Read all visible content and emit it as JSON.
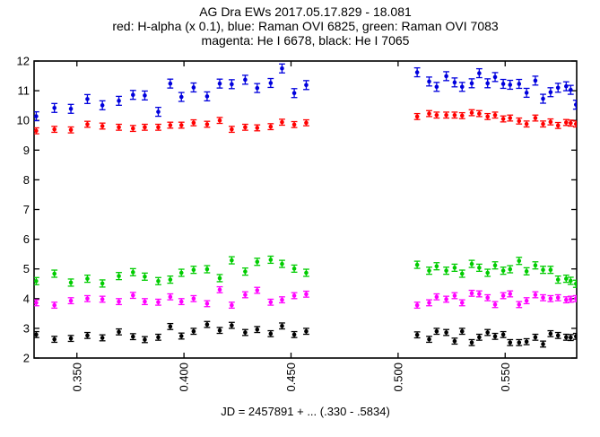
{
  "window": {
    "background": "#ffffff"
  },
  "chart_data": {
    "type": "scatter",
    "marker": "filled-circle-with-errorbars",
    "title": "AG Dra EWs 2017.05.17.829 - 18.081",
    "legend_line_1": "red: H-alpha (x 0.1), blue: Raman OVI 6825, green: Raman OVI 7083",
    "legend_line_2": "magenta: He I 6678, black: He I 7065",
    "xlabel": "JD = 2457891 + ... (.330 - .5834)",
    "ylabel": "",
    "xlim": [
      0.33,
      0.5834
    ],
    "ylim": [
      2,
      12
    ],
    "grid": false,
    "tick_style": "inside-mirrored",
    "xtick_values": [
      0.35,
      0.4,
      0.45,
      0.5,
      0.55
    ],
    "xtick_labels": [
      "0.350",
      "0.400",
      "0.450",
      "0.500",
      "0.550"
    ],
    "xtick_label_rotation": -90,
    "ytick_values": [
      2,
      3,
      4,
      5,
      6,
      7,
      8,
      9,
      10,
      11,
      12
    ],
    "ytick_labels": [
      "2",
      "3",
      "4",
      "5",
      "6",
      "7",
      "8",
      "9",
      "10",
      "11",
      "12"
    ],
    "x": [
      0.331,
      0.3395,
      0.3472,
      0.3549,
      0.3619,
      0.3696,
      0.3762,
      0.3817,
      0.388,
      0.3936,
      0.3988,
      0.4045,
      0.4108,
      0.4167,
      0.4223,
      0.4286,
      0.4342,
      0.4405,
      0.4458,
      0.4515,
      0.4571,
      0.5089,
      0.5145,
      0.518,
      0.5225,
      0.5264,
      0.5299,
      0.5344,
      0.5379,
      0.5418,
      0.5453,
      0.5491,
      0.5523,
      0.5565,
      0.56,
      0.5641,
      0.5677,
      0.5712,
      0.5747,
      0.5785,
      0.5806,
      0.5831
    ],
    "series": [
      {
        "name": "H-alpha (x 0.1)",
        "color": "#ff0000",
        "err": 0.1,
        "values": [
          9.65,
          9.7,
          9.68,
          9.87,
          9.81,
          9.77,
          9.73,
          9.77,
          9.77,
          9.84,
          9.84,
          9.92,
          9.87,
          10.0,
          9.7,
          9.77,
          9.75,
          9.79,
          9.94,
          9.86,
          9.92,
          10.13,
          10.23,
          10.18,
          10.18,
          10.18,
          10.16,
          10.26,
          10.23,
          10.13,
          10.18,
          10.05,
          10.08,
          9.98,
          9.88,
          10.08,
          9.88,
          9.95,
          9.83,
          9.93,
          9.91,
          9.88
        ]
      },
      {
        "name": "Raman OVI 6825",
        "color": "#0000dd",
        "err": 0.15,
        "values": [
          10.14,
          10.42,
          10.39,
          10.72,
          10.51,
          10.66,
          10.86,
          10.84,
          10.29,
          11.24,
          10.79,
          11.11,
          10.81,
          11.24,
          11.22,
          11.37,
          11.09,
          11.26,
          11.75,
          10.92,
          11.19,
          11.62,
          11.31,
          11.13,
          11.49,
          11.28,
          11.13,
          11.25,
          11.59,
          11.25,
          11.46,
          11.23,
          11.2,
          11.23,
          10.93,
          11.34,
          10.73,
          10.95,
          11.1,
          11.15,
          11.03,
          10.53
        ]
      },
      {
        "name": "Raman OVI 7083",
        "color": "#00cc00",
        "err": 0.12,
        "values": [
          4.59,
          4.84,
          4.54,
          4.67,
          4.51,
          4.76,
          4.89,
          4.74,
          4.59,
          4.64,
          4.87,
          4.97,
          4.99,
          4.69,
          5.29,
          4.91,
          5.24,
          5.31,
          5.17,
          5.01,
          4.87,
          5.14,
          4.94,
          5.09,
          4.94,
          5.04,
          4.84,
          5.17,
          5.04,
          4.87,
          5.12,
          4.94,
          4.99,
          5.27,
          4.92,
          5.12,
          4.97,
          4.97,
          4.64,
          4.67,
          4.6,
          4.5
        ]
      },
      {
        "name": "He I 6678",
        "color": "#ff00ff",
        "err": 0.1,
        "values": [
          3.86,
          3.78,
          3.93,
          4.0,
          3.98,
          3.9,
          4.11,
          3.9,
          3.88,
          4.06,
          3.9,
          4.0,
          3.83,
          4.3,
          3.78,
          4.13,
          4.28,
          3.88,
          3.96,
          4.1,
          4.15,
          3.78,
          3.86,
          4.06,
          3.98,
          4.1,
          3.86,
          4.18,
          4.16,
          4.03,
          3.8,
          4.1,
          4.16,
          3.8,
          3.93,
          4.13,
          4.03,
          4.0,
          4.03,
          3.96,
          3.98,
          4.0
        ]
      },
      {
        "name": "He I 7065",
        "color": "#000000",
        "err": 0.1,
        "values": [
          2.79,
          2.63,
          2.66,
          2.76,
          2.68,
          2.88,
          2.72,
          2.62,
          2.7,
          3.06,
          2.74,
          2.9,
          3.13,
          2.93,
          3.1,
          2.86,
          2.96,
          2.82,
          3.08,
          2.79,
          2.9,
          2.78,
          2.63,
          2.9,
          2.86,
          2.57,
          2.9,
          2.52,
          2.7,
          2.86,
          2.73,
          2.79,
          2.52,
          2.52,
          2.55,
          2.7,
          2.47,
          2.82,
          2.76,
          2.7,
          2.69,
          2.73
        ]
      }
    ]
  }
}
